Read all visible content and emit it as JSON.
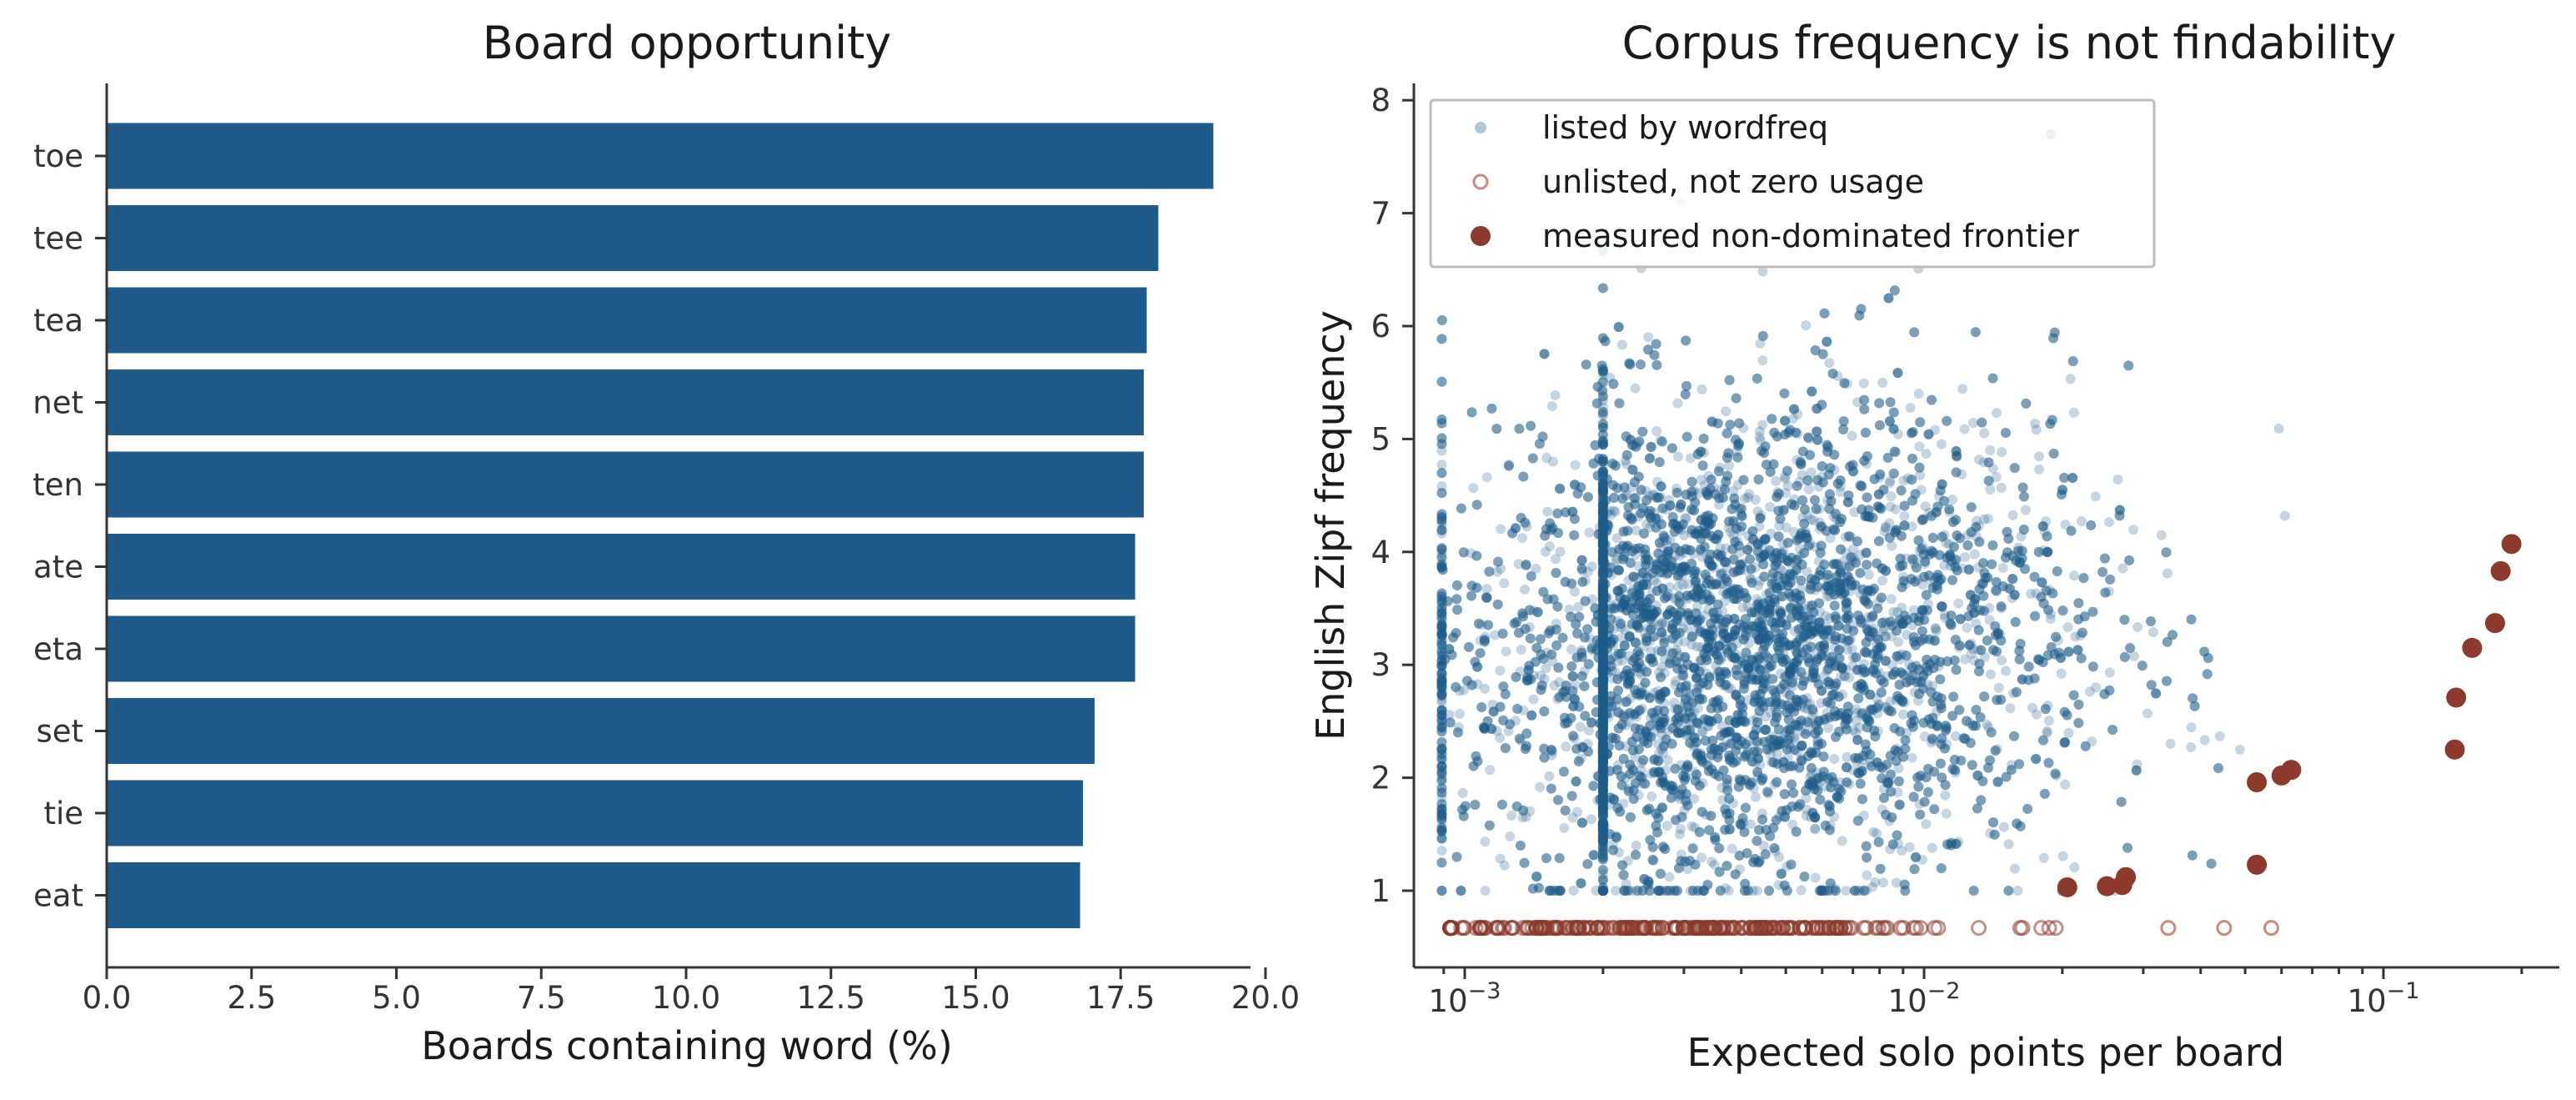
{
  "colors": {
    "bar": "#1f5b8a",
    "listed": "#1f5b8a",
    "frontier": "#8b3a2c",
    "unlisted": "#c98a80"
  },
  "chart_data": [
    {
      "type": "bar",
      "orientation": "horizontal",
      "title": "Board opportunity",
      "xlabel": "Boards containing word (%)",
      "ylabel": "",
      "xlim": [
        0,
        20
      ],
      "xticks": [
        "0.0",
        "2.5",
        "5.0",
        "7.5",
        "10.0",
        "12.5",
        "15.0",
        "17.5",
        "20.0"
      ],
      "categories": [
        "toe",
        "tee",
        "tea",
        "net",
        "ten",
        "ate",
        "eta",
        "set",
        "tie",
        "eat"
      ],
      "values": [
        19.1,
        18.15,
        17.95,
        17.9,
        17.9,
        17.75,
        17.75,
        17.05,
        16.85,
        16.8
      ],
      "grid": false
    },
    {
      "type": "scatter",
      "title": "Corpus frequency is not findability",
      "xlabel": "Expected solo points per board",
      "ylabel": "English Zipf frequency",
      "xscale": "log",
      "xlim": [
        0.00085,
        0.25
      ],
      "ylim": [
        0.3,
        8.1
      ],
      "xticks": [
        0.001,
        0.01,
        0.1
      ],
      "yticks": [
        "1",
        "2",
        "3",
        "4",
        "5",
        "6",
        "7",
        "8"
      ],
      "legend_position": "top-left",
      "grid": false,
      "series": [
        {
          "name": "listed by wordfreq",
          "marker": "small filled dot, translucent",
          "approx_count": 9000
        },
        {
          "name": "unlisted, not zero usage",
          "marker": "hollow circle",
          "y": 0.67,
          "x_range": [
            0.00093,
            0.057
          ]
        },
        {
          "name": "measured non-dominated frontier",
          "marker": "large filled dot",
          "points": [
            [
              0.0205,
              1.03
            ],
            [
              0.025,
              1.04
            ],
            [
              0.027,
              1.05
            ],
            [
              0.0275,
              1.12
            ],
            [
              0.053,
              1.23
            ],
            [
              0.053,
              1.96
            ],
            [
              0.06,
              2.02
            ],
            [
              0.063,
              2.07
            ],
            [
              0.143,
              2.25
            ],
            [
              0.144,
              2.71
            ],
            [
              0.156,
              3.15
            ],
            [
              0.175,
              3.37
            ],
            [
              0.18,
              3.83
            ],
            [
              0.19,
              4.07
            ]
          ]
        }
      ]
    }
  ]
}
